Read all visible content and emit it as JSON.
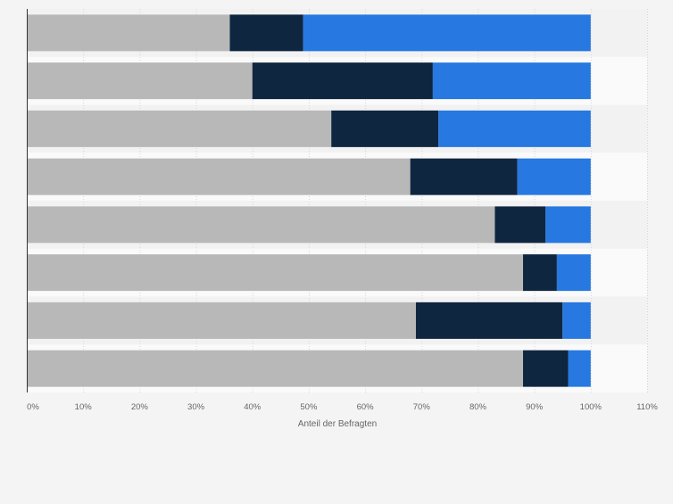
{
  "chart_data": {
    "type": "bar",
    "orientation": "horizontal",
    "stacked": true,
    "categories": [
      "",
      "",
      "",
      "",
      "",
      "",
      "",
      ""
    ],
    "series": [
      {
        "values": [
          36,
          40,
          54,
          68,
          83,
          88,
          69,
          88
        ],
        "color": "#b8b8b8"
      },
      {
        "values": [
          13,
          32,
          19,
          19,
          9,
          6,
          26,
          8
        ],
        "color": "#0f2640"
      },
      {
        "values": [
          51,
          28,
          27,
          13,
          8,
          6,
          5,
          4
        ],
        "color": "#2778e0"
      }
    ],
    "xlabel": "Anteil der Befragten",
    "xlim": [
      0,
      110
    ],
    "x_ticks": [
      0,
      10,
      20,
      30,
      40,
      50,
      60,
      70,
      80,
      90,
      100,
      110
    ],
    "x_tick_labels": [
      "0%",
      "10%",
      "20%",
      "30%",
      "40%",
      "50%",
      "60%",
      "70%",
      "80%",
      "90%",
      "100%",
      "110%"
    ],
    "grid": true,
    "legend": "none"
  }
}
